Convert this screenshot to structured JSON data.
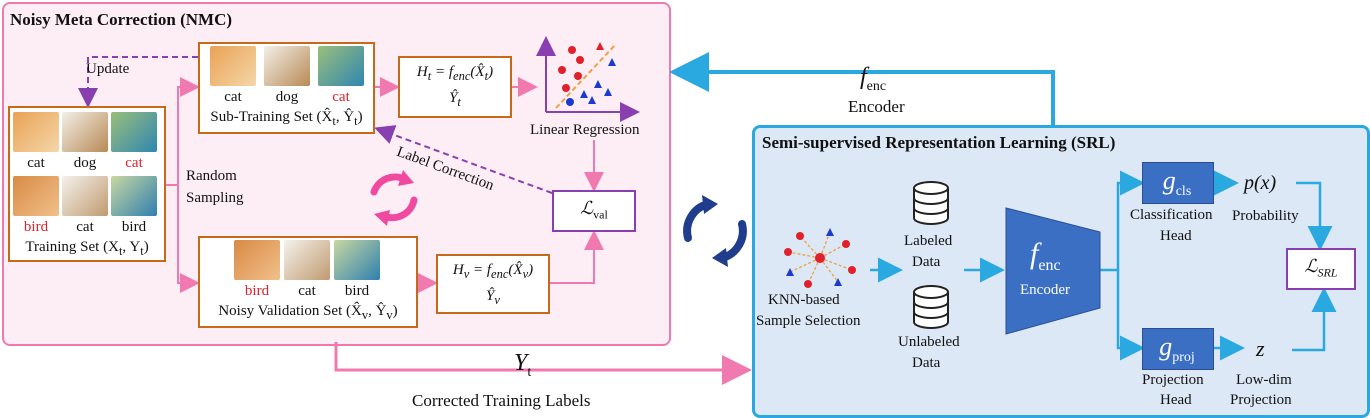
{
  "nmc": {
    "title": "Noisy Meta Correction (NMC)",
    "update": "Update",
    "random_sampling_1": "Random",
    "random_sampling_2": "Sampling",
    "label_correction": "Label Correction",
    "training_set": {
      "labels_row1": [
        "cat",
        "dog",
        "cat"
      ],
      "labels_row2": [
        "bird",
        "cat",
        "bird"
      ],
      "caption": "Training Set (X",
      "caption_sub1": "t",
      "caption_mid": ", Y",
      "caption_sub2": "t",
      "caption_end": ")"
    },
    "sub_training_set": {
      "labels": [
        "cat",
        "dog",
        "cat"
      ],
      "caption": "Sub-Training Set (X̂",
      "caption_sub1": "t",
      "caption_mid": ", Ŷ",
      "caption_sub2": "t",
      "caption_end": ")"
    },
    "noisy_validation_set": {
      "labels": [
        "bird",
        "cat",
        "bird"
      ],
      "caption": "Noisy Validation Set (X̂",
      "caption_sub1": "v",
      "caption_mid": ", Ŷ",
      "caption_sub2": "v",
      "caption_end": ")"
    },
    "ht_formula": {
      "lhs": "H",
      "lhs_sub": "t",
      "eq": " = f",
      "f_sub": "enc",
      "arg": "(X̂",
      "arg_sub": "t",
      "close": ")",
      "y": "Ŷ",
      "y_sub": "t"
    },
    "hv_formula": {
      "lhs": "H",
      "lhs_sub": "v",
      "eq": " = f",
      "f_sub": "enc",
      "arg": "(X̂",
      "arg_sub": "v",
      "close": ")",
      "y": "Ŷ",
      "y_sub": "v"
    },
    "linear_regression": "Linear Regression",
    "l_val": {
      "sym": "ℒ",
      "sub": "val"
    }
  },
  "encoder_top": {
    "sym": "f",
    "sub": "enc",
    "label": "Encoder"
  },
  "corrected": {
    "sym": "Y",
    "sub": "t",
    "label": "Corrected Training Labels"
  },
  "srl": {
    "title": "Semi-supervised Representation Learning (SRL)",
    "knn_1": "KNN-based",
    "knn_2": "Sample Selection",
    "labeled_1": "Labeled",
    "labeled_2": "Data",
    "unlabeled_1": "Unlabeled",
    "unlabeled_2": "Data",
    "encoder": {
      "sym": "f",
      "sub": "enc",
      "label": "Encoder"
    },
    "g_cls": {
      "sym": "g",
      "sub": "cls"
    },
    "g_proj": {
      "sym": "g",
      "sub": "proj"
    },
    "classification_head_1": "Classification",
    "classification_head_2": "Head",
    "projection_head_1": "Projection",
    "projection_head_2": "Head",
    "probability_sym": "p(x)",
    "probability": "Probability",
    "z_sym": "z",
    "lowdim_1": "Low-dim",
    "lowdim_2": "Projection",
    "l_srl": {
      "sym": "ℒ",
      "sub": "SRL"
    }
  },
  "colors": {
    "pink": "#f07ab0",
    "blue": "#2aa8e0",
    "purple": "#8a3fb0",
    "orange": "#c46a1a",
    "navy": "#1f3d8c"
  }
}
